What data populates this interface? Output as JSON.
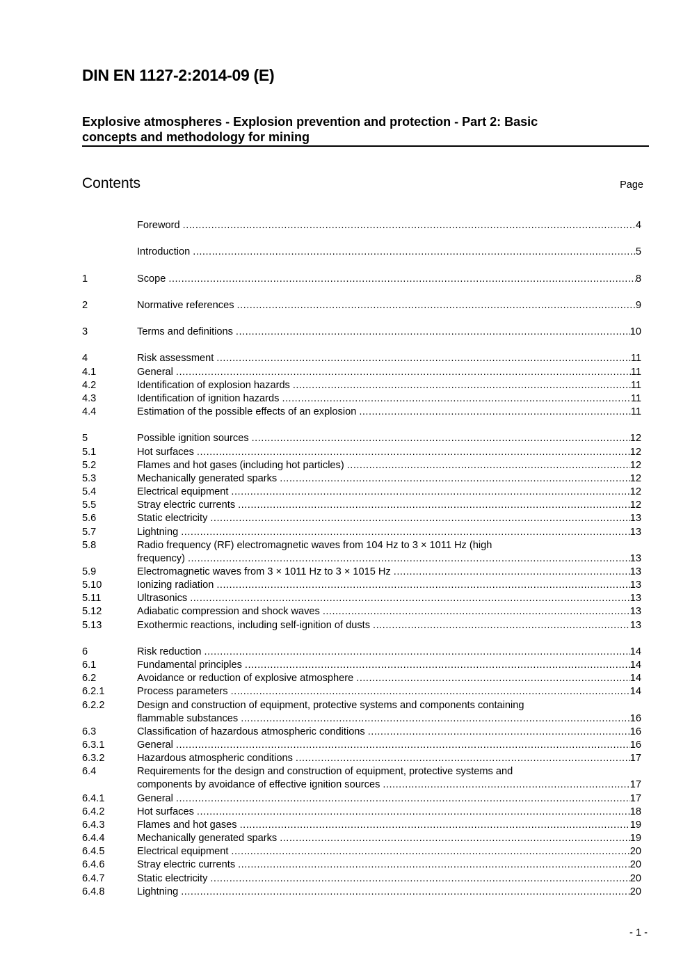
{
  "document_id": "DIN EN 1127-2:2014-09 (E)",
  "subtitle_lines": [
    "Explosive atmospheres - Explosion prevention and protection - Part 2: Basic",
    "concepts and methodology for mining"
  ],
  "contents_heading": "Contents",
  "page_heading": "Page",
  "toc_groups": [
    [
      {
        "num": "",
        "title": "Foreword",
        "page": "4"
      }
    ],
    [
      {
        "num": "",
        "title": "Introduction",
        "page": "5"
      }
    ],
    [
      {
        "num": "1",
        "title": "Scope",
        "page": "8"
      }
    ],
    [
      {
        "num": "2",
        "title": "Normative references",
        "page": "9"
      }
    ],
    [
      {
        "num": "3",
        "title": "Terms and definitions",
        "page": "10"
      }
    ],
    [
      {
        "num": "4",
        "title": "Risk assessment",
        "page": "11"
      },
      {
        "num": "4.1",
        "title": "General",
        "page": "11"
      },
      {
        "num": "4.2",
        "title": "Identification of explosion hazards",
        "page": "11"
      },
      {
        "num": "4.3",
        "title": "Identification of ignition hazards",
        "page": "11"
      },
      {
        "num": "4.4",
        "title": "Estimation of the possible effects of an explosion",
        "page": "11"
      }
    ],
    [
      {
        "num": "5",
        "title": "Possible ignition sources",
        "page": "12"
      },
      {
        "num": "5.1",
        "title": "Hot surfaces",
        "page": "12"
      },
      {
        "num": "5.2",
        "title": "Flames and hot gases (including hot particles)",
        "page": "12"
      },
      {
        "num": "5.3",
        "title": "Mechanically generated sparks",
        "page": "12"
      },
      {
        "num": "5.4",
        "title": "Electrical equipment",
        "page": "12"
      },
      {
        "num": "5.5",
        "title": "Stray electric currents",
        "page": "12"
      },
      {
        "num": "5.6",
        "title": "Static electricity",
        "page": "13"
      },
      {
        "num": "5.7",
        "title": "Lightning",
        "page": "13"
      },
      {
        "num": "5.8",
        "title": "Radio frequency (RF) electromagnetic waves from 104 Hz to 3 × 1011 Hz (high",
        "title_cont": "frequency)",
        "page": "13"
      },
      {
        "num": "5.9",
        "title": "Electromagnetic waves from 3 × 1011 Hz to 3 × 1015 Hz",
        "page": "13"
      },
      {
        "num": "5.10",
        "title": "Ionizing radiation",
        "page": "13"
      },
      {
        "num": "5.11",
        "title": "Ultrasonics",
        "page": "13"
      },
      {
        "num": "5.12",
        "title": "Adiabatic compression and shock waves",
        "page": "13"
      },
      {
        "num": "5.13",
        "title": "Exothermic reactions, including self-ignition of dusts",
        "page": "13"
      }
    ],
    [
      {
        "num": "6",
        "title": "Risk reduction",
        "page": "14"
      },
      {
        "num": "6.1",
        "title": "Fundamental principles",
        "page": "14"
      },
      {
        "num": "6.2",
        "title": "Avoidance or reduction of explosive atmosphere",
        "page": "14"
      },
      {
        "num": "6.2.1",
        "title": "Process parameters",
        "page": "14"
      },
      {
        "num": "6.2.2",
        "title": "Design and construction of equipment, protective systems and components containing",
        "title_cont": "flammable substances",
        "page": "16"
      },
      {
        "num": "6.3",
        "title": "Classification of hazardous atmospheric conditions",
        "page": "16"
      },
      {
        "num": "6.3.1",
        "title": "General",
        "page": "16"
      },
      {
        "num": "6.3.2",
        "title": "Hazardous atmospheric conditions",
        "page": "17"
      },
      {
        "num": "6.4",
        "title": "Requirements for the design and construction of equipment, protective systems and",
        "title_cont": "components by avoidance of effective ignition sources",
        "page": "17"
      },
      {
        "num": "6.4.1",
        "title": "General",
        "page": "17"
      },
      {
        "num": "6.4.2",
        "title": "Hot surfaces",
        "page": "18"
      },
      {
        "num": "6.4.3",
        "title": "Flames and hot gases",
        "page": "19"
      },
      {
        "num": "6.4.4",
        "title": "Mechanically generated sparks",
        "page": "19"
      },
      {
        "num": "6.4.5",
        "title": "Electrical equipment",
        "page": "20"
      },
      {
        "num": "6.4.6",
        "title": "Stray electric currents",
        "page": "20"
      },
      {
        "num": "6.4.7",
        "title": "Static electricity",
        "page": "20"
      },
      {
        "num": "6.4.8",
        "title": "Lightning",
        "page": "20"
      }
    ]
  ],
  "footer_page": "- 1 -"
}
